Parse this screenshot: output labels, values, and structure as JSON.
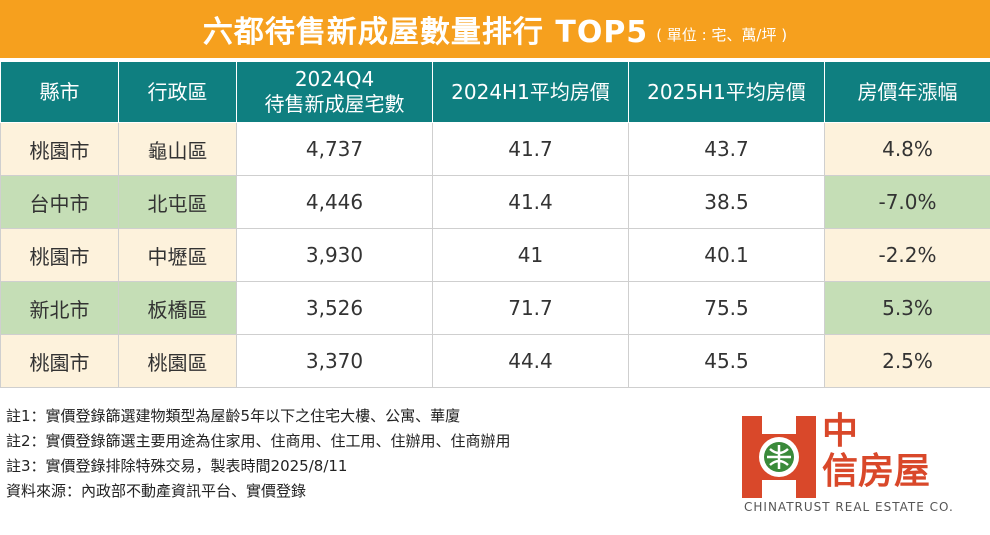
{
  "header": {
    "title": "六都待售新成屋數量排行 TOP5",
    "unit": "( 單位 : 宅、萬/坪 )"
  },
  "table": {
    "columns": [
      "縣市",
      "行政區",
      "2024Q4",
      "待售新成屋宅數",
      "2024H1平均房價",
      "2025H1平均房價",
      "房價年漲幅"
    ],
    "rows": [
      {
        "county": "桃園市",
        "district": "龜山區",
        "units": "4,737",
        "price_2024h1": "41.7",
        "price_2025h1": "43.7",
        "change": "4.8%"
      },
      {
        "county": "台中市",
        "district": "北屯區",
        "units": "4,446",
        "price_2024h1": "41.4",
        "price_2025h1": "38.5",
        "change": "-7.0%"
      },
      {
        "county": "桃園市",
        "district": "中壢區",
        "units": "3,930",
        "price_2024h1": "41",
        "price_2025h1": "40.1",
        "change": "-2.2%"
      },
      {
        "county": "新北市",
        "district": "板橋區",
        "units": "3,526",
        "price_2024h1": "71.7",
        "price_2025h1": "75.5",
        "change": "5.3%"
      },
      {
        "county": "桃園市",
        "district": "桃園區",
        "units": "3,370",
        "price_2024h1": "44.4",
        "price_2025h1": "45.5",
        "change": "2.5%"
      }
    ]
  },
  "notes": [
    "註1：實價登錄篩選建物類型為屋齡5年以下之住宅大樓、公寓、華廈",
    "註2：實價登錄篩選主要用途為住家用、住商用、住工用、住辦用、住商辦用",
    "註3：實價登錄排除特殊交易，製表時間2025/8/11",
    "資料來源：內政部不動產資訊平台、實價登錄"
  ],
  "logo": {
    "name_line1": "中",
    "name_line2": "信房屋",
    "english": "CHINATRUST REAL ESTATE CO.",
    "icon": "chinatrust-logo-icon"
  },
  "colors": {
    "title_bg": "#f6a01e",
    "header_bg": "#0f7f80",
    "beige": "#fdf2dc",
    "green": "#c5deb6",
    "brand_red": "#d9482a"
  }
}
